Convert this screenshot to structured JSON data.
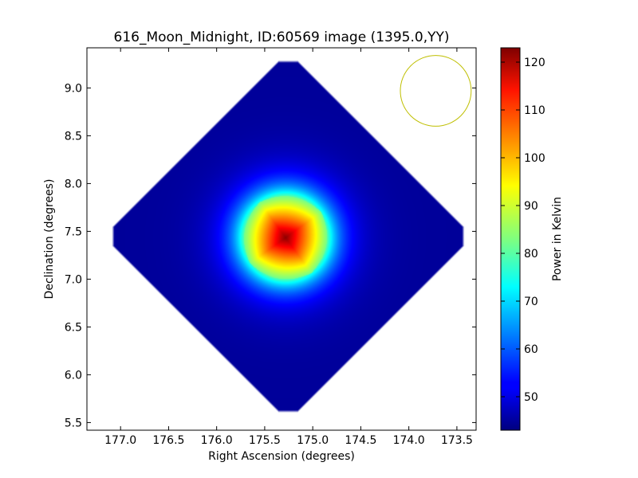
{
  "chart_data": {
    "type": "heatmap",
    "title": "616_Moon_Midnight, ID:60569 image (1395.0,YY)",
    "xlabel": "Right Ascension (degrees)",
    "ylabel": "Declination (degrees)",
    "colorbar_label": "Power in Kelvin",
    "colormap": "jet",
    "xlim": [
      177.35,
      173.3
    ],
    "ylim": [
      5.42,
      9.42
    ],
    "x_ticks": [
      177.0,
      176.5,
      176.0,
      175.5,
      175.0,
      174.5,
      174.0,
      173.5
    ],
    "x_tick_labels": [
      "177.0",
      "176.5",
      "176.0",
      "175.5",
      "175.0",
      "174.5",
      "174.0",
      "173.5"
    ],
    "y_ticks": [
      5.5,
      6.0,
      6.5,
      7.0,
      7.5,
      8.0,
      8.5,
      9.0
    ],
    "y_tick_labels": [
      "5.5",
      "6.0",
      "6.5",
      "7.0",
      "7.5",
      "8.0",
      "8.5",
      "9.0"
    ],
    "colorbar_range": [
      43,
      123
    ],
    "colorbar_ticks": [
      50,
      60,
      70,
      80,
      90,
      100,
      110,
      120
    ],
    "colorbar_tick_labels": [
      "50",
      "60",
      "70",
      "80",
      "90",
      "100",
      "110",
      "120"
    ],
    "map_center": [
      175.28,
      7.43
    ],
    "peak_value": 122,
    "background_value": 45,
    "beam_circle": {
      "ra": 173.72,
      "dec": 8.97,
      "radius_deg": 0.37,
      "color": "#bfbf00"
    }
  }
}
